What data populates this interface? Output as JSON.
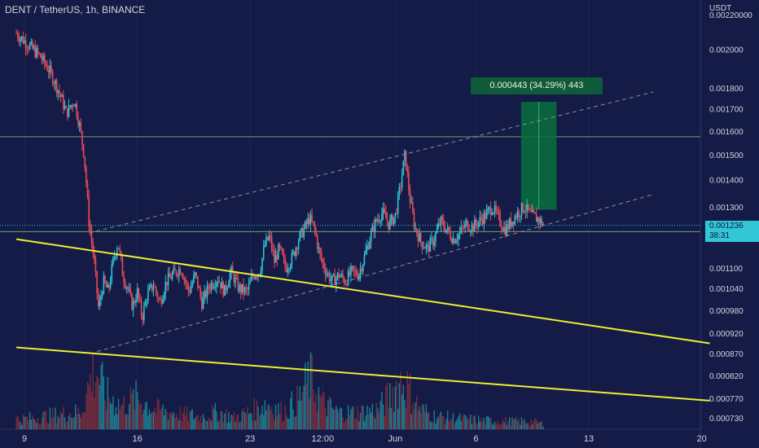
{
  "chart_data": {
    "type": "candlestick",
    "title": "DENT / TetherUS, 1h, BINANCE",
    "y_axis_unit": "USDT",
    "y_axis_scale": "log",
    "ylim": [
      0.0007,
      0.00225
    ],
    "y_ticks": [
      {
        "value": 0.0022,
        "label": "0.00220000"
      },
      {
        "value": 0.002,
        "label": "0.002000"
      },
      {
        "value": 0.0018,
        "label": "0.001800"
      },
      {
        "value": 0.0017,
        "label": "0.001700"
      },
      {
        "value": 0.0016,
        "label": "0.001600"
      },
      {
        "value": 0.0015,
        "label": "0.001500"
      },
      {
        "value": 0.0014,
        "label": "0.001400"
      },
      {
        "value": 0.0013,
        "label": "0.001300"
      },
      {
        "value": 0.0011,
        "label": "0.001100"
      },
      {
        "value": 0.00104,
        "label": "0.001040"
      },
      {
        "value": 0.00098,
        "label": "0.000980"
      },
      {
        "value": 0.00092,
        "label": "0.000920"
      },
      {
        "value": 0.00087,
        "label": "0.000870"
      },
      {
        "value": 0.00082,
        "label": "0.000820"
      },
      {
        "value": 0.00077,
        "label": "0.000770"
      },
      {
        "value": 0.00073,
        "label": "0.000730"
      }
    ],
    "x_ticks": [
      {
        "label": "9",
        "day": 0
      },
      {
        "label": "16",
        "day": 7
      },
      {
        "label": "23",
        "day": 14
      },
      {
        "label": "12:00",
        "day": 18.5
      },
      {
        "label": "Jun",
        "day": 23
      },
      {
        "label": "6",
        "day": 28
      },
      {
        "label": "13",
        "day": 35
      },
      {
        "label": "20",
        "day": 42
      }
    ],
    "price_path": [
      [
        -0.5,
        0.00209
      ],
      [
        0.3,
        0.00202
      ],
      [
        1.0,
        0.00196
      ],
      [
        1.6,
        0.00188
      ],
      [
        2.2,
        0.00177
      ],
      [
        2.6,
        0.00168
      ],
      [
        3.1,
        0.00174
      ],
      [
        3.4,
        0.00163
      ],
      [
        3.7,
        0.0015
      ],
      [
        4.0,
        0.00125
      ],
      [
        4.3,
        0.00113
      ],
      [
        4.6,
        0.00098
      ],
      [
        4.9,
        0.00106
      ],
      [
        5.2,
        0.00103
      ],
      [
        5.5,
        0.00112
      ],
      [
        5.8,
        0.00118
      ],
      [
        6.1,
        0.00108
      ],
      [
        6.4,
        0.00104
      ],
      [
        6.7,
        0.00099
      ],
      [
        7.0,
        0.00103
      ],
      [
        7.3,
        0.00096
      ],
      [
        7.6,
        0.00102
      ],
      [
        8.0,
        0.00105
      ],
      [
        8.4,
        0.001
      ],
      [
        8.8,
        0.00106
      ],
      [
        9.2,
        0.00108
      ],
      [
        9.7,
        0.0011
      ],
      [
        10.2,
        0.00103
      ],
      [
        10.6,
        0.00108
      ],
      [
        11.0,
        0.001
      ],
      [
        11.5,
        0.00105
      ],
      [
        12.0,
        0.00107
      ],
      [
        12.4,
        0.00103
      ],
      [
        12.8,
        0.00109
      ],
      [
        13.3,
        0.00104
      ],
      [
        13.8,
        0.00103
      ],
      [
        14.2,
        0.00108
      ],
      [
        14.6,
        0.00109
      ],
      [
        14.9,
        0.00117
      ],
      [
        15.2,
        0.0012
      ],
      [
        15.5,
        0.00112
      ],
      [
        15.8,
        0.00116
      ],
      [
        16.2,
        0.0011
      ],
      [
        16.6,
        0.00113
      ],
      [
        17.0,
        0.00119
      ],
      [
        17.4,
        0.00123
      ],
      [
        17.7,
        0.00126
      ],
      [
        18.0,
        0.00122
      ],
      [
        18.3,
        0.00114
      ],
      [
        18.7,
        0.00109
      ],
      [
        19.1,
        0.00106
      ],
      [
        19.5,
        0.00108
      ],
      [
        19.9,
        0.00106
      ],
      [
        20.3,
        0.00109
      ],
      [
        20.7,
        0.00108
      ],
      [
        21.0,
        0.00112
      ],
      [
        21.4,
        0.00119
      ],
      [
        21.8,
        0.00125
      ],
      [
        22.2,
        0.00128
      ],
      [
        22.6,
        0.00124
      ],
      [
        23.0,
        0.00127
      ],
      [
        23.3,
        0.00137
      ],
      [
        23.6,
        0.0015
      ],
      [
        23.9,
        0.00133
      ],
      [
        24.2,
        0.00123
      ],
      [
        24.6,
        0.00118
      ],
      [
        25.0,
        0.00116
      ],
      [
        25.4,
        0.00119
      ],
      [
        25.8,
        0.00125
      ],
      [
        26.2,
        0.00122
      ],
      [
        26.6,
        0.00119
      ],
      [
        27.0,
        0.00121
      ],
      [
        27.4,
        0.00124
      ],
      [
        27.8,
        0.00123
      ],
      [
        28.2,
        0.00125
      ],
      [
        28.6,
        0.00127
      ],
      [
        29.0,
        0.0013
      ],
      [
        29.4,
        0.00126
      ],
      [
        29.8,
        0.00122
      ],
      [
        30.2,
        0.00125
      ],
      [
        30.6,
        0.00128
      ],
      [
        31.0,
        0.0013
      ],
      [
        31.4,
        0.00127
      ],
      [
        31.8,
        0.00126
      ],
      [
        32.2,
        0.00124
      ]
    ],
    "volume_path": [
      [
        0,
        0.18
      ],
      [
        2,
        0.25
      ],
      [
        3.5,
        0.3
      ],
      [
        4.2,
        0.95
      ],
      [
        4.5,
        1.0
      ],
      [
        5.0,
        0.6
      ],
      [
        6,
        0.4
      ],
      [
        7,
        0.55
      ],
      [
        8,
        0.35
      ],
      [
        9,
        0.3
      ],
      [
        10,
        0.25
      ],
      [
        11,
        0.22
      ],
      [
        12,
        0.3
      ],
      [
        13,
        0.2
      ],
      [
        14,
        0.3
      ],
      [
        15,
        0.45
      ],
      [
        16,
        0.3
      ],
      [
        17,
        0.5
      ],
      [
        17.7,
        0.9
      ],
      [
        18.5,
        0.45
      ],
      [
        19.5,
        0.28
      ],
      [
        21,
        0.3
      ],
      [
        22,
        0.35
      ],
      [
        23.4,
        0.85
      ],
      [
        23.8,
        0.7
      ],
      [
        24.5,
        0.35
      ],
      [
        25.5,
        0.22
      ],
      [
        27,
        0.18
      ],
      [
        28.5,
        0.15
      ],
      [
        30,
        0.14
      ],
      [
        31.5,
        0.13
      ],
      [
        32.2,
        0.1
      ]
    ],
    "channel_lines": [
      {
        "name": "upper",
        "start": [
          4.0,
          0.00121
        ],
        "end": [
          39.0,
          0.00178
        ]
      },
      {
        "name": "lower",
        "start": [
          4.5,
          0.000875
        ],
        "end": [
          39.0,
          0.001345
        ]
      }
    ],
    "support_lines": [
      {
        "start": [
          -0.5,
          0.00119
        ],
        "end": [
          42.5,
          0.000895
        ]
      },
      {
        "start": [
          -0.5,
          0.000885
        ],
        "end": [
          42.5,
          0.000765
        ]
      }
    ],
    "horizontal_levels": [
      0.001575,
      0.001236,
      0.001215
    ],
    "measure": {
      "x0": 30.8,
      "x1": 33.0,
      "price_from": 0.00129,
      "price_to": 0.001733,
      "label": "0.000443 (34.29%) 443"
    },
    "last_price": {
      "label": "0.001236",
      "countdown": "38:31"
    }
  },
  "colors": {
    "background": "#131b46",
    "bull": "#2fc3d3",
    "bear": "#e84b57",
    "trendline": "#eeee33",
    "measure_fill": "#0b6e3d",
    "channel": "#8a90a8",
    "level": "#6fa36f",
    "axis_text": "#d1d4dc",
    "price_tag": "#33c6d6"
  }
}
